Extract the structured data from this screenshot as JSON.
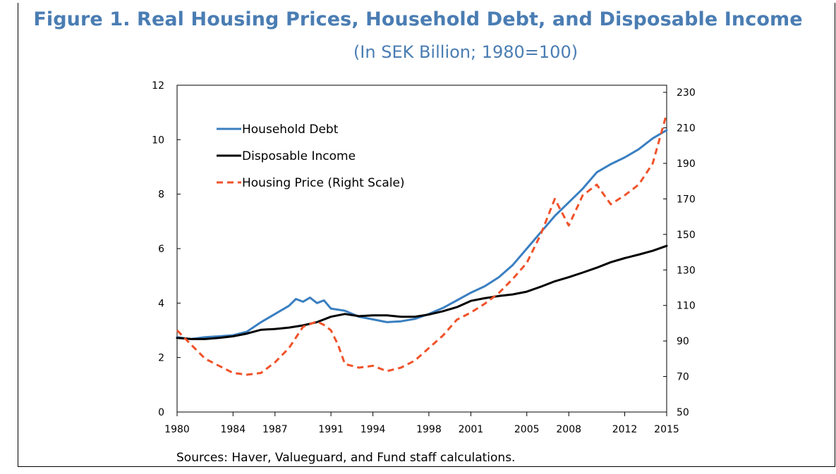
{
  "title": "Figure 1. Real Housing Prices, Household Debt, and Disposable Income",
  "subtitle": "(In SEK Billion; 1980=100)",
  "source": "Sources: Haver, Valueguard, and Fund staff calculations.",
  "chart_data": {
    "type": "line",
    "x_ticks": [
      "1980",
      "1984",
      "1987",
      "1991",
      "1994",
      "1998",
      "2001",
      "2005",
      "2008",
      "2012",
      "2015"
    ],
    "x_range": [
      1980,
      2015
    ],
    "y_left": {
      "range": [
        0,
        12
      ],
      "ticks": [
        "0",
        "2",
        "4",
        "6",
        "8",
        "10",
        "12"
      ]
    },
    "y_right": {
      "range": [
        50,
        234
      ],
      "ticks": [
        "50",
        "70",
        "90",
        "110",
        "130",
        "150",
        "170",
        "190",
        "210",
        "230"
      ]
    },
    "grid": false,
    "legend_placement": "top-left",
    "series": [
      {
        "name": "Household Debt",
        "axis": "left",
        "color": "#3a7fc1",
        "style": "solid",
        "x": [
          1980,
          1981,
          1982,
          1983,
          1984,
          1985,
          1986,
          1987,
          1988,
          1988.5,
          1989,
          1989.5,
          1990,
          1990.5,
          1991,
          1992,
          1993,
          1994,
          1995,
          1996,
          1997,
          1998,
          1999,
          2000,
          2001,
          2002,
          2003,
          2004,
          2005,
          2006,
          2007,
          2008,
          2009,
          2010,
          2011,
          2012,
          2013,
          2014,
          2015
        ],
        "y": [
          2.75,
          2.68,
          2.75,
          2.78,
          2.82,
          2.95,
          3.3,
          3.6,
          3.9,
          4.15,
          4.05,
          4.2,
          4.0,
          4.1,
          3.8,
          3.72,
          3.5,
          3.4,
          3.3,
          3.33,
          3.42,
          3.6,
          3.82,
          4.1,
          4.38,
          4.62,
          4.95,
          5.4,
          6.0,
          6.6,
          7.2,
          7.7,
          8.2,
          8.8,
          9.1,
          9.35,
          9.65,
          10.05,
          10.35
        ]
      },
      {
        "name": "Disposable Income",
        "axis": "left",
        "color": "#000000",
        "style": "solid",
        "x": [
          1980,
          1981,
          1982,
          1983,
          1984,
          1985,
          1986,
          1987,
          1988,
          1989,
          1990,
          1991,
          1992,
          1993,
          1994,
          1995,
          1996,
          1997,
          1998,
          1999,
          2000,
          2001,
          2002,
          2003,
          2004,
          2005,
          2006,
          2007,
          2008,
          2009,
          2010,
          2011,
          2012,
          2013,
          2014,
          2015
        ],
        "y": [
          2.72,
          2.68,
          2.68,
          2.72,
          2.78,
          2.88,
          3.02,
          3.05,
          3.1,
          3.18,
          3.3,
          3.5,
          3.6,
          3.52,
          3.55,
          3.55,
          3.5,
          3.5,
          3.58,
          3.7,
          3.85,
          4.08,
          4.18,
          4.26,
          4.32,
          4.42,
          4.6,
          4.8,
          4.95,
          5.12,
          5.3,
          5.5,
          5.65,
          5.78,
          5.92,
          6.1
        ]
      },
      {
        "name": "Housing Price (Right Scale)",
        "axis": "right",
        "color": "#f0522a",
        "style": "dashed",
        "x": [
          1980,
          1981,
          1982,
          1983,
          1984,
          1985,
          1986,
          1987,
          1988,
          1989,
          1990,
          1990.5,
          1991,
          1991.5,
          1992,
          1993,
          1994,
          1995,
          1996,
          1997,
          1998,
          1999,
          2000,
          2001,
          2002,
          2003,
          2004,
          2005,
          2006,
          2007,
          2008,
          2009,
          2010,
          2011,
          2012,
          2013,
          2014,
          2015
        ],
        "y": [
          96,
          88,
          80,
          76,
          72,
          71,
          72,
          78,
          86,
          98,
          101,
          99,
          96,
          88,
          77,
          75,
          76,
          73,
          75,
          79,
          86,
          93,
          102,
          106,
          111,
          117,
          125,
          134,
          150,
          170,
          155,
          172,
          178,
          167,
          172,
          178,
          190,
          218
        ]
      }
    ]
  }
}
